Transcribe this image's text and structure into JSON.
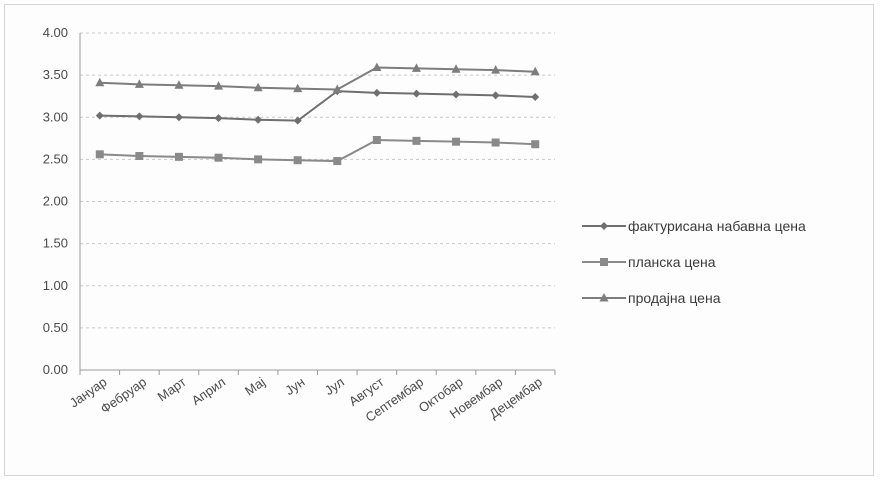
{
  "chart_data": {
    "type": "line",
    "categories": [
      "Јануар",
      "Фебруар",
      "Март",
      "Април",
      "Мај",
      "Јун",
      "Јул",
      "Август",
      "Септембар",
      "Октобар",
      "Новембар",
      "Децембар"
    ],
    "series": [
      {
        "name": "фактурисана набавна цена",
        "marker": "diamond",
        "color": "#6f6f6f",
        "values": [
          3.02,
          3.01,
          3.0,
          2.99,
          2.97,
          2.96,
          3.31,
          3.29,
          3.28,
          3.27,
          3.26,
          3.24
        ]
      },
      {
        "name": "планска цена",
        "marker": "square",
        "color": "#8a8a8a",
        "values": [
          2.56,
          2.54,
          2.53,
          2.52,
          2.5,
          2.49,
          2.48,
          2.73,
          2.72,
          2.71,
          2.7,
          2.68
        ]
      },
      {
        "name": "продајна цена",
        "marker": "triangle",
        "color": "#7d7d7d",
        "values": [
          3.41,
          3.39,
          3.38,
          3.37,
          3.35,
          3.34,
          3.33,
          3.59,
          3.58,
          3.57,
          3.56,
          3.54
        ]
      }
    ],
    "ylim": [
      0,
      4
    ],
    "yticks": [
      "0.00",
      "0.50",
      "1.00",
      "1.50",
      "2.00",
      "2.50",
      "3.00",
      "3.50",
      "4.00"
    ],
    "grid": true,
    "legend": "right"
  }
}
